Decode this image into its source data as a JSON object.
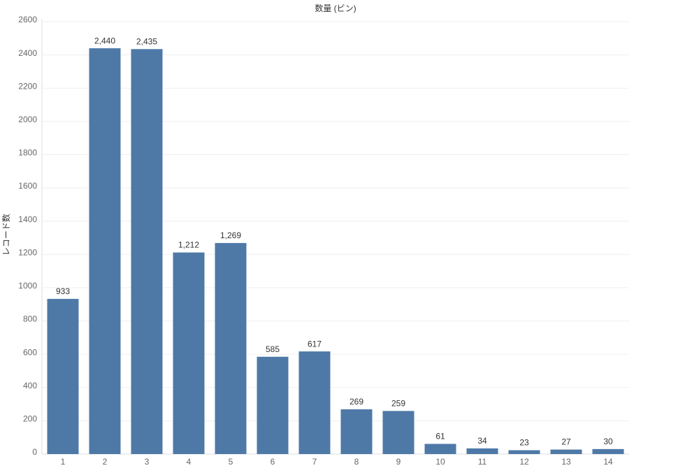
{
  "chart_data": {
    "type": "bar",
    "x_label": "数量 (ビン)",
    "y_label": "レコード数",
    "categories": [
      "1",
      "2",
      "3",
      "4",
      "5",
      "6",
      "7",
      "8",
      "9",
      "10",
      "11",
      "12",
      "13",
      "14"
    ],
    "values": [
      933,
      2440,
      2435,
      1212,
      1269,
      585,
      617,
      269,
      259,
      61,
      34,
      23,
      27,
      30
    ],
    "value_labels": [
      "933",
      "2,440",
      "2,435",
      "1,212",
      "1,269",
      "585",
      "617",
      "269",
      "259",
      "61",
      "34",
      "23",
      "27",
      "30"
    ],
    "color": "#4e79a7",
    "ylim": [
      0,
      2600
    ],
    "yticks": [
      0,
      200,
      400,
      600,
      800,
      1000,
      1200,
      1400,
      1600,
      1800,
      2000,
      2200,
      2400,
      2600
    ],
    "grid": true
  }
}
